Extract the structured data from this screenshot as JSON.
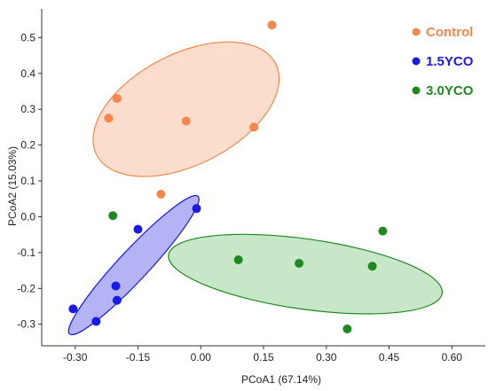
{
  "chart_data": {
    "type": "scatter",
    "xlabel": "PCoA1 (67.14%)",
    "ylabel": "PCoA2 (15.03%)",
    "xlim": [
      -0.38,
      0.68
    ],
    "ylim": [
      -0.36,
      0.58
    ],
    "x_ticks": [
      -0.3,
      -0.15,
      0.0,
      0.15,
      0.3,
      0.45,
      0.6
    ],
    "x_tick_labels": [
      "-0.30",
      "-0.15",
      "0.00",
      "0.15",
      "0.30",
      "0.45",
      "0.60"
    ],
    "y_ticks": [
      -0.3,
      -0.2,
      -0.1,
      0.0,
      0.1,
      0.2,
      0.3,
      0.4,
      0.5
    ],
    "y_tick_labels": [
      "-0.3",
      "-0.2",
      "-0.1",
      "0.0",
      "0.1",
      "0.2",
      "0.3",
      "0.4",
      "0.5"
    ],
    "grid": false,
    "legend_position": "top-right",
    "series": [
      {
        "name": "Control",
        "color": "#F4874B",
        "fill": "#FAD2BD",
        "points": [
          [
            -0.2,
            0.33
          ],
          [
            -0.22,
            0.275
          ],
          [
            -0.035,
            0.267
          ],
          [
            0.127,
            0.25
          ],
          [
            0.17,
            0.535
          ],
          [
            -0.095,
            0.063
          ]
        ],
        "ellipse": {
          "cx": -0.035,
          "cy": 0.3,
          "rx": 0.24,
          "ry": 0.155,
          "angle": 27
        }
      },
      {
        "name": "1.5YCO",
        "color": "#1A1AE6",
        "fill": "#9A9AF2",
        "points": [
          [
            -0.01,
            0.023
          ],
          [
            -0.15,
            -0.035
          ],
          [
            -0.203,
            -0.193
          ],
          [
            -0.2,
            -0.233
          ],
          [
            -0.305,
            -0.257
          ],
          [
            -0.25,
            -0.292
          ]
        ],
        "ellipse": {
          "cx": -0.16,
          "cy": -0.135,
          "rx": 0.225,
          "ry": 0.042,
          "angle": 47
        }
      },
      {
        "name": "3.0YCO",
        "color": "#1E8A1E",
        "fill": "#B5DDB5",
        "points": [
          [
            -0.21,
            0.003
          ],
          [
            0.09,
            -0.12
          ],
          [
            0.235,
            -0.13
          ],
          [
            0.41,
            -0.138
          ],
          [
            0.435,
            -0.04
          ],
          [
            0.35,
            -0.313
          ]
        ],
        "ellipse": {
          "cx": 0.25,
          "cy": -0.16,
          "rx": 0.33,
          "ry": 0.098,
          "angle": -8
        }
      }
    ]
  }
}
